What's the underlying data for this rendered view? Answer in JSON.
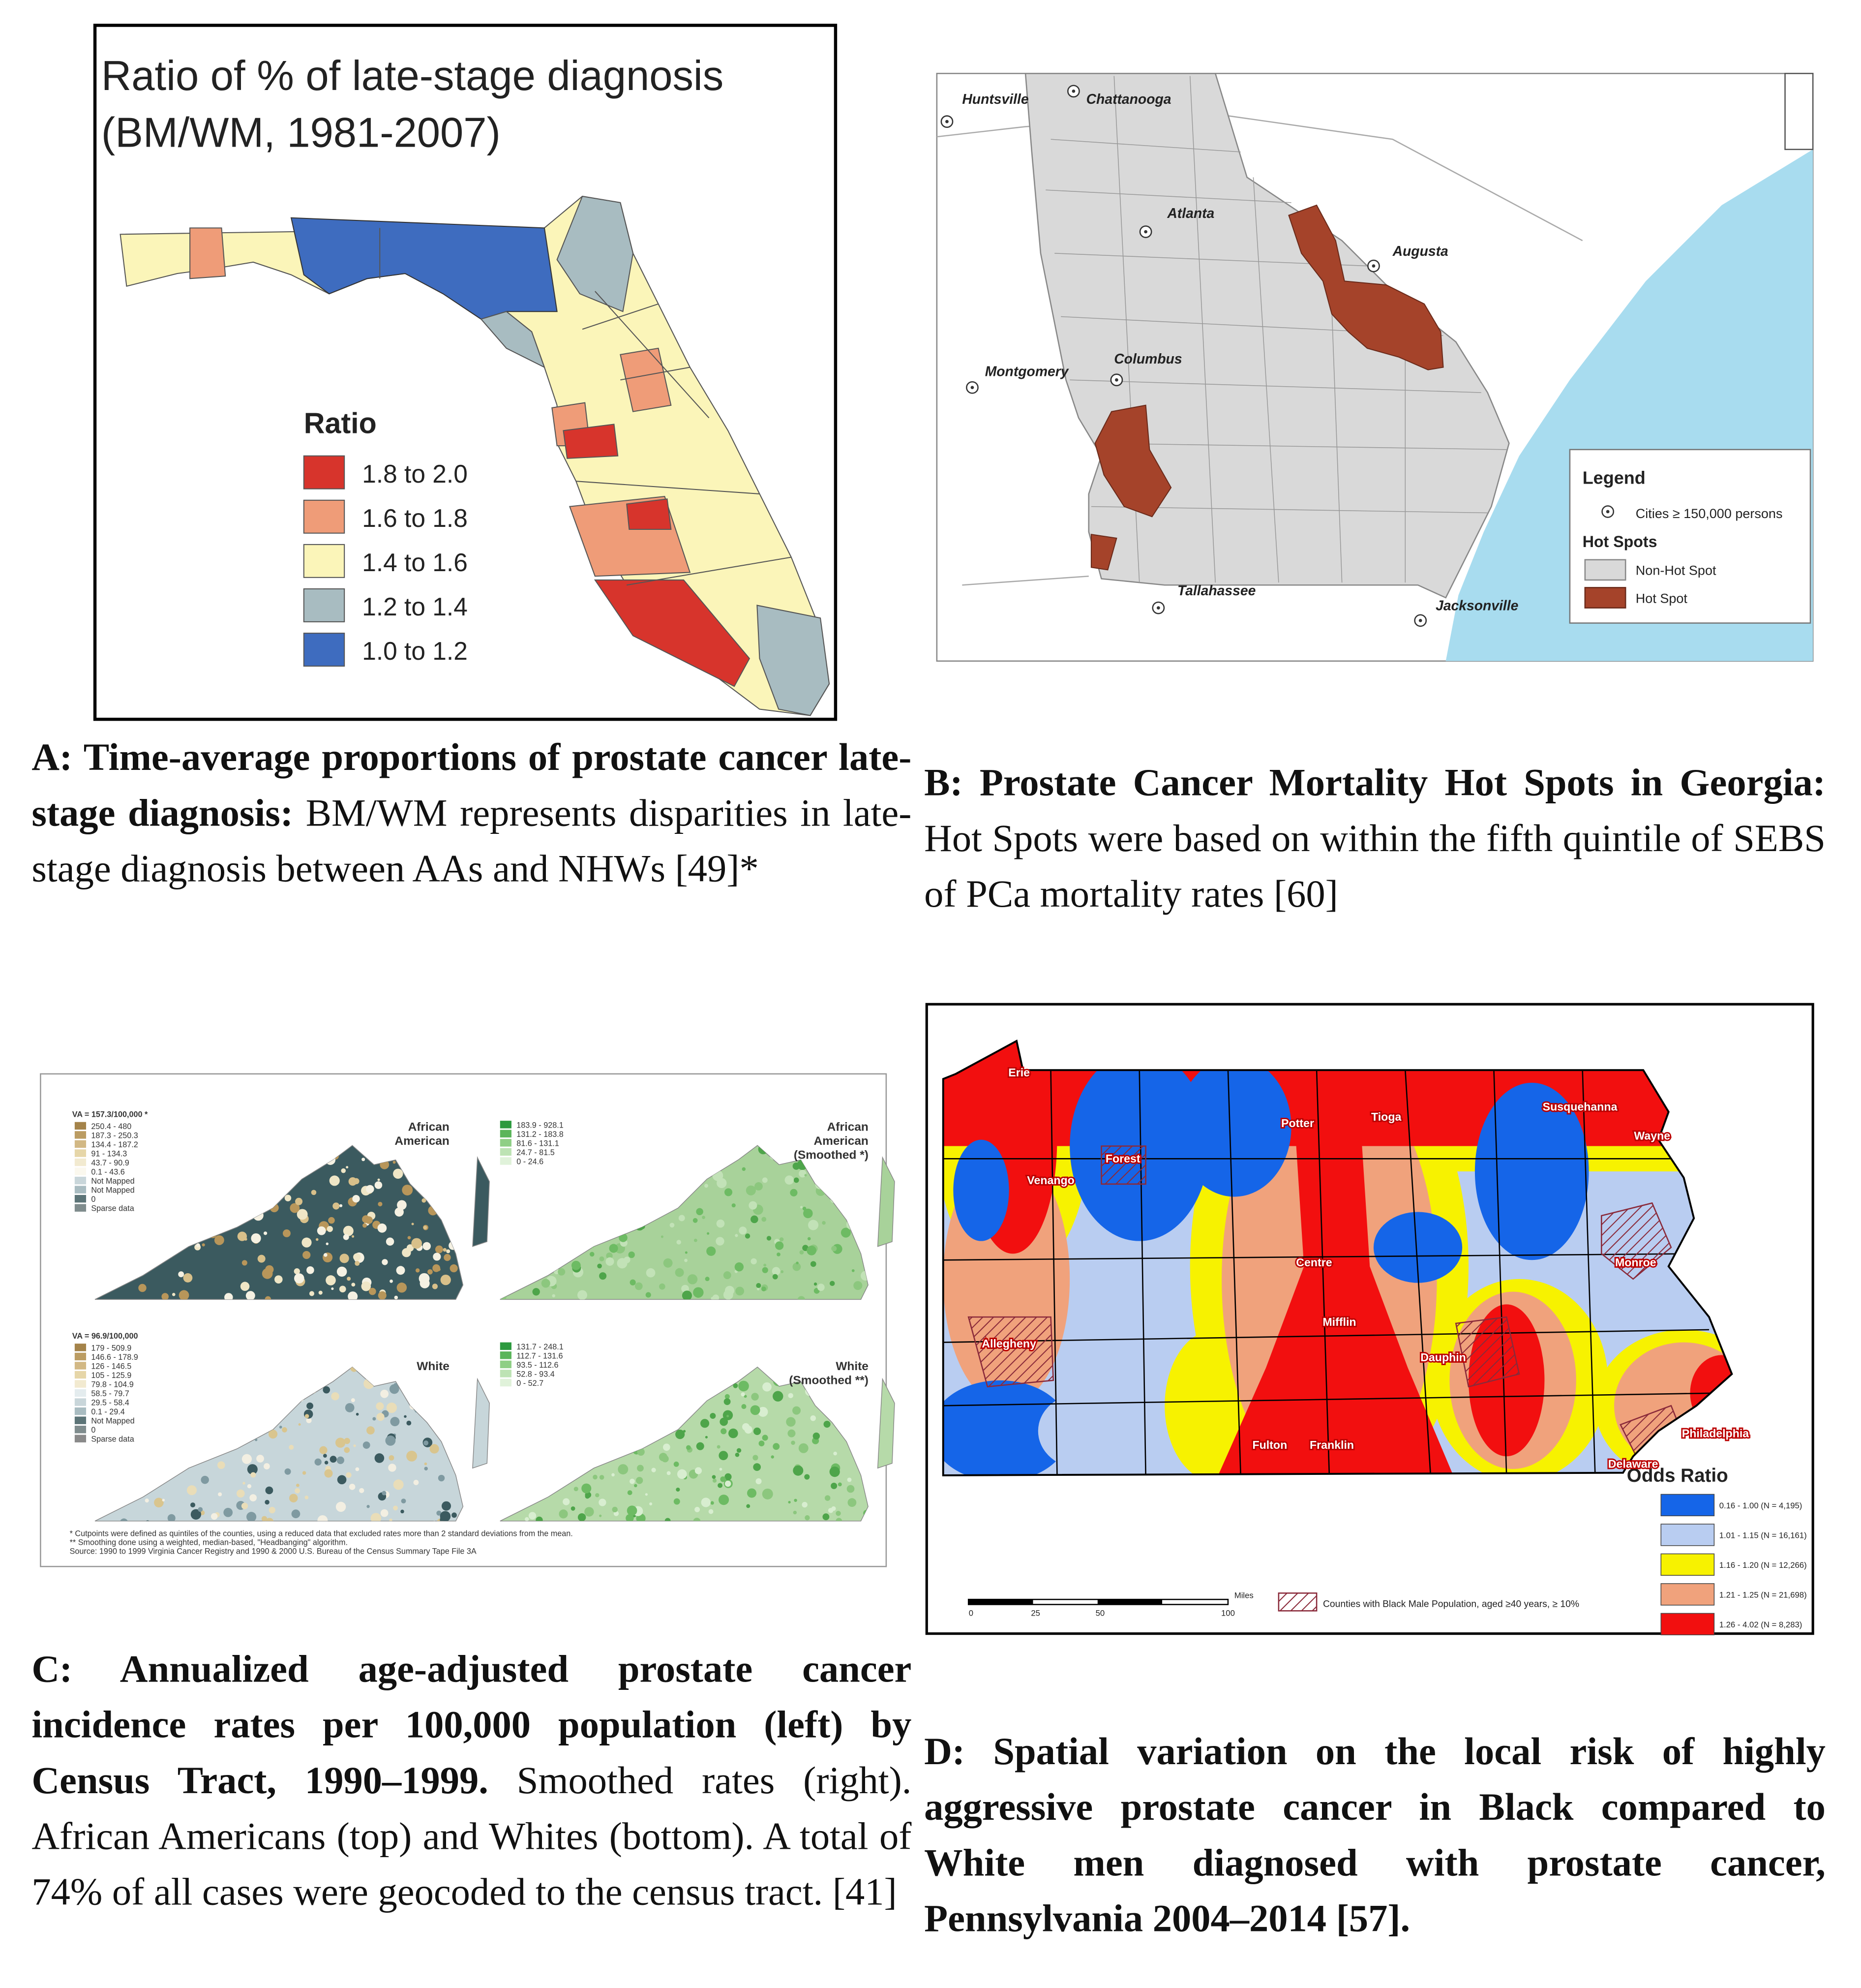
{
  "panel_a": {
    "title": [
      "Ratio of % of late-stage diagnosis",
      "(BM/WM, 1981-2007)"
    ],
    "legend_title": "Ratio",
    "legend": [
      "1.8 to 2.0",
      "1.6 to 1.8",
      "1.4 to 1.6",
      "1.2 to 1.4",
      "1.0 to 1.2"
    ],
    "caption": {
      "bold": "A: Time-average proportions of prostate cancer late-stage diagnosis:",
      "text": "BM/WM represents disparities in late-stage diagnosis between AAs and NHWs [49]*"
    }
  },
  "panel_b": {
    "cities": [
      "Huntsville",
      "Chattanooga",
      "Atlanta",
      "Augusta",
      "Montgomery",
      "Columbus",
      "Tallahassee",
      "Jacksonville"
    ],
    "legend": {
      "title": "Legend",
      "cities": "Cities ≥ 150,000 persons",
      "hot_spots_title": "Hot Spots",
      "items": [
        "Non-Hot Spot",
        "Hot Spot"
      ]
    },
    "caption": {
      "bold": "B: Prostate Cancer Mortality Hot Spots in Georgia:",
      "text": "Hot Spots were based on within the fifth quintile of SEBS of PCa mortality rates [60]"
    }
  },
  "panel_c": {
    "maps": [
      {
        "rate": "VA = 157.3/100,000 *",
        "label": [
          "African",
          "American"
        ],
        "legend": [
          "250.4 - 480",
          "187.3 - 250.3",
          "134.4 - 187.2",
          "91 - 134.3",
          "43.7 - 90.9",
          "0.1 - 43.6",
          "Not Mapped",
          "Not Mapped",
          "0",
          "Sparse data"
        ]
      },
      {
        "label": [
          "African",
          "American",
          "(Smoothed *)"
        ],
        "legend": [
          "183.9 - 928.1",
          "131.2 - 183.8",
          "81.6 - 131.1",
          "24.7 - 81.5",
          "0 - 24.6"
        ]
      },
      {
        "rate": "VA = 96.9/100,000",
        "label": [
          "White"
        ],
        "legend": [
          "179 - 509.9",
          "146.6 - 178.9",
          "126 - 146.5",
          "105 - 125.9",
          "79.8 - 104.9",
          "58.5 - 79.7",
          "29.5 - 58.4",
          "0.1 - 29.4",
          "Not Mapped",
          "0",
          "Sparse data"
        ]
      },
      {
        "label": [
          "White",
          "(Smoothed **)"
        ],
        "legend": [
          "131.7 - 248.1",
          "112.7 - 131.6",
          "93.5 - 112.6",
          "52.8 - 93.4",
          "0 - 52.7"
        ]
      }
    ],
    "footnotes": [
      "*   Cutpoints were defined as quintiles of the counties, using a reduced data that excluded rates more than 2 standard deviations from the mean.",
      "**  Smoothing done using a weighted, median-based, \"Headbanging\" algorithm.",
      "Source:  1990 to 1999 Virginia Cancer Registry and 1990 & 2000 U.S. Bureau of the Census Summary Tape File 3A"
    ],
    "caption": {
      "bold": "C: Annualized age-adjusted prostate cancer incidence rates per 100,000 population (left) by Census Tract, 1990–1999.",
      "text": "Smoothed rates (right). African Americans (top) and Whites (bottom). A total of 74% of all cases were geocoded to the census tract. [41]"
    }
  },
  "panel_d": {
    "counties": [
      "Erie",
      "Potter",
      "Tioga",
      "Susquehanna",
      "Wayne",
      "Forest",
      "Venango",
      "Monroe",
      "Centre",
      "Allegheny",
      "Mifflin",
      "Dauphin",
      "Fulton",
      "Franklin",
      "Philadelphia",
      "Delaware"
    ],
    "legend_title": "Odds Ratio",
    "legend": [
      "0.16 - 1.00 (N = 4,195)",
      "1.01 - 1.15 (N = 16,161)",
      "1.16 - 1.20 (N = 12,266)",
      "1.21 - 1.25 (N = 21,698)",
      "1.26 - 4.02 (N = 8,283)"
    ],
    "scale": [
      "0",
      "25",
      "50",
      "100",
      "Miles"
    ],
    "hatch_label": "Counties with Black Male Population, aged ≥40 years, ≥ 10%",
    "caption": {
      "bold": "D: Spatial variation on the local risk of highly aggressive prostate cancer in Black compared to White men diagnosed with prostate cancer, Pennsylvania 2004–2014 [57].",
      "text": ""
    }
  }
}
